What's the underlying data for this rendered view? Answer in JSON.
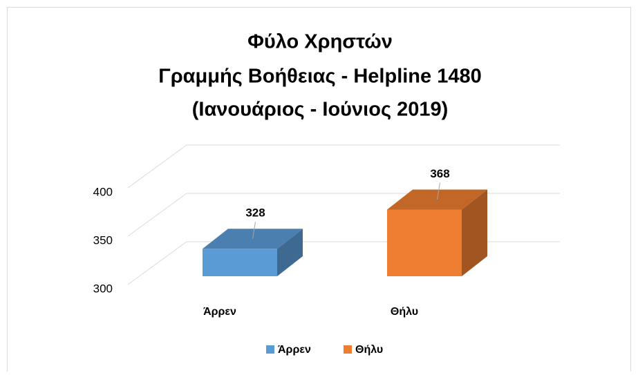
{
  "chart_data": {
    "type": "bar3d",
    "title": [
      "Φύλο Χρηστών",
      "Γραμμής Βοήθειας - Helpline 1480",
      "(Ιανουάριος - Ιούνιος 2019)"
    ],
    "categories": [
      "Άρρεν",
      "Θήλυ"
    ],
    "values": [
      328,
      368
    ],
    "colors": [
      "#5b9bd5",
      "#ed7d31"
    ],
    "ylim": [
      300,
      400
    ],
    "yticks": [
      300,
      350,
      400
    ],
    "grid": true,
    "legend": "bottom"
  }
}
